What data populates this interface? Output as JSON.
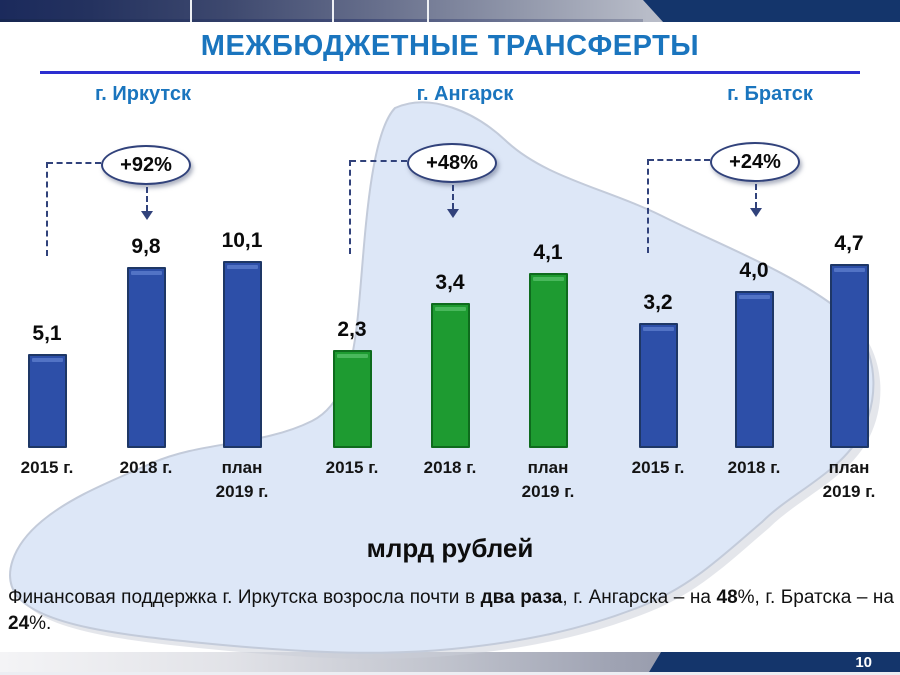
{
  "slide": {
    "title": "МЕЖБЮДЖЕТНЫЕ ТРАНСФЕРТЫ",
    "unit_label": "млрд рублей",
    "page_number": "10",
    "footnote_segments": [
      {
        "text": "Финансовая поддержка г. Иркутска возросла почти в ",
        "bold": false
      },
      {
        "text": "два раза",
        "bold": true
      },
      {
        "text": ", г. Ангарска – на ",
        "bold": false
      },
      {
        "text": "48",
        "bold": true
      },
      {
        "text": "%, г. Братска – на ",
        "bold": false
      },
      {
        "text": "24",
        "bold": true
      },
      {
        "text": "%.",
        "bold": false
      }
    ]
  },
  "colors": {
    "title_blue": "#1a75be",
    "title_underline_blue": "#2c2fd0",
    "callout_navy": "#31427b",
    "banner_navy": "#14356b",
    "map_fill": "#dde7f7",
    "map_edge": "#c3cbda",
    "bar_blue_fill": "#2d4fa8",
    "bar_green_fill": "#1e9b31"
  },
  "chart_data": {
    "type": "bar",
    "title": "МЕЖБЮДЖЕТНЫЕ ТРАНСФЕРТЫ",
    "unit": "млрд рублей",
    "categories": [
      "2015 г.",
      "2018 г.",
      "план 2019 г."
    ],
    "category_label_lines": [
      [
        "2015 г."
      ],
      [
        "2018 г."
      ],
      [
        "план",
        "2019 г."
      ]
    ],
    "grid": false,
    "axes_visible": false,
    "legend_position": "none",
    "value_format": "comma-decimal",
    "groups": [
      {
        "name": "г. Иркутск",
        "growth_callout": "+92%",
        "values": [
          5.1,
          9.8,
          10.1
        ],
        "value_labels": [
          "5,1",
          "9,8",
          "10,1"
        ],
        "bar_fill": "#2d4fa8",
        "bar_border": "#1e3766",
        "bar_highlight": "#5273c5"
      },
      {
        "name": "г. Ангарск",
        "growth_callout": "+48%",
        "values": [
          2.3,
          3.4,
          4.1
        ],
        "value_labels": [
          "2,3",
          "3,4",
          "4,1"
        ],
        "bar_fill": "#1e9b31",
        "bar_border": "#0e6b1d",
        "bar_highlight": "#49b85c"
      },
      {
        "name": "г. Братск",
        "growth_callout": "+24%",
        "values": [
          3.2,
          4.0,
          4.7
        ],
        "value_labels": [
          "3,2",
          "4,0",
          "4,7"
        ],
        "bar_fill": "#2d4fa8",
        "bar_border": "#1e3766",
        "bar_highlight": "#5273c5"
      }
    ]
  }
}
